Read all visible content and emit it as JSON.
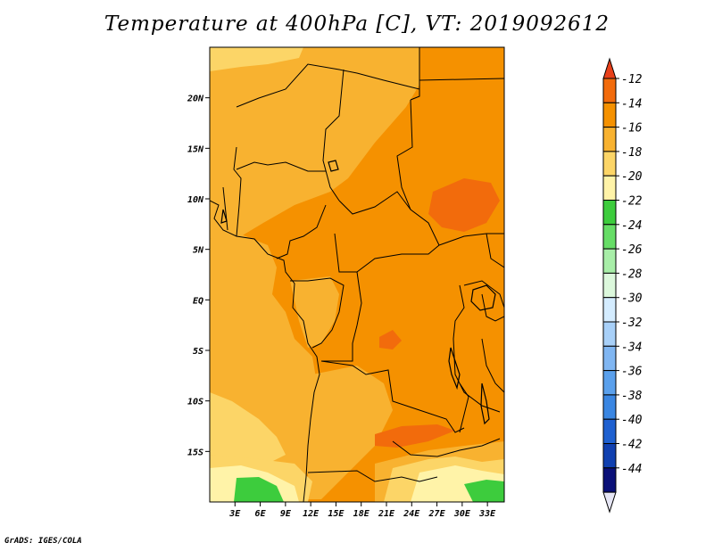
{
  "title": "Temperature at 400hPa [C], VT: 2019092612",
  "footer": "GrADS: IGES/COLA",
  "map": {
    "lon_range": [
      0,
      35
    ],
    "lat_range": [
      -20,
      25
    ],
    "lat_ticks": [
      {
        "value": 20,
        "label": "20N"
      },
      {
        "value": 15,
        "label": "15N"
      },
      {
        "value": 10,
        "label": "10N"
      },
      {
        "value": 5,
        "label": "5N"
      },
      {
        "value": 0,
        "label": "EQ"
      },
      {
        "value": -5,
        "label": "5S"
      },
      {
        "value": -10,
        "label": "10S"
      },
      {
        "value": -15,
        "label": "15S"
      }
    ],
    "lon_ticks": [
      {
        "value": 3,
        "label": "3E"
      },
      {
        "value": 6,
        "label": "6E"
      },
      {
        "value": 9,
        "label": "9E"
      },
      {
        "value": 12,
        "label": "12E"
      },
      {
        "value": 15,
        "label": "15E"
      },
      {
        "value": 18,
        "label": "18E"
      },
      {
        "value": 21,
        "label": "21E"
      },
      {
        "value": 24,
        "label": "24E"
      },
      {
        "value": 27,
        "label": "27E"
      },
      {
        "value": 30,
        "label": "30E"
      },
      {
        "value": 33,
        "label": "33E"
      }
    ]
  },
  "colorbar": {
    "levels": [
      -12,
      -14,
      -16,
      -18,
      -20,
      -22,
      -24,
      -26,
      -28,
      -30,
      -32,
      -34,
      -36,
      -38,
      -40,
      -42,
      -44
    ],
    "labels": [
      "-12",
      "-14",
      "-16",
      "-18",
      "-20",
      "-22",
      "-24",
      "-26",
      "-28",
      "-30",
      "-32",
      "-34",
      "-36",
      "-38",
      "-40",
      "-42",
      "-44"
    ],
    "top_color": "#e8401a",
    "bottom_color": "#e6e6f5",
    "colors": [
      "#f26b0c",
      "#f59100",
      "#f8b230",
      "#fcd567",
      "#fff3a8",
      "#3dcc3d",
      "#66dd66",
      "#a8eea8",
      "#dcf8dc",
      "#d4ecff",
      "#a8d0f8",
      "#80b6f2",
      "#5aa0ec",
      "#3a86e2",
      "#1e60d0",
      "#1040b0",
      "#0a1078"
    ]
  },
  "colors": {
    "t_minus12": "#e8401a",
    "t_minus14": "#f26b0c",
    "t_minus16": "#f59100",
    "t_minus18": "#f8b230",
    "t_minus20": "#fcd567",
    "t_minus22": "#fff3a8",
    "t_minus24": "#3dcc3d"
  }
}
